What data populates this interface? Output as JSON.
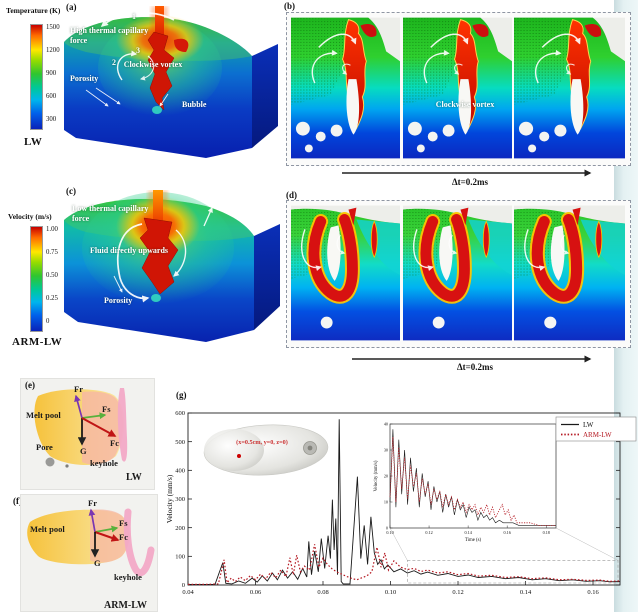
{
  "temperature_colorbar": {
    "title": "Temperature (K)",
    "ticks": [
      "1500",
      "1200",
      "900",
      "600",
      "300"
    ],
    "caption": "LW"
  },
  "velocity_colorbar": {
    "title": "Velocity (m/s)",
    "ticks": [
      "1.00",
      "0.75",
      "0.50",
      "0.25",
      "0"
    ],
    "caption": "ARM-LW"
  },
  "panel_a": {
    "tag": "(a)",
    "label_force": "High thermal capillary force",
    "n1": "1",
    "n2": "2",
    "n3": "3",
    "label_vortex": "Clockwise vortex",
    "label_porosity": "Porosity",
    "label_bubble": "Bubble"
  },
  "panel_b": {
    "tag": "(b)",
    "label_vortex": "Clockwise vortex",
    "delta": "Δt=0.2ms"
  },
  "panel_c": {
    "tag": "(c)",
    "label_force": "Low thermal capillary force",
    "label_fluid": "Fluid directly upwards",
    "label_porosity": "Porosity"
  },
  "panel_d": {
    "tag": "(d)",
    "delta": "Δt=0.2ms"
  },
  "panel_e": {
    "tag": "(e)",
    "melt_pool": "Melt pool",
    "fr": "Fr",
    "fs": "Fs",
    "g": "G",
    "fc": "Fc",
    "pore": "Pore",
    "keyhole": "keyhole",
    "caption": "LW"
  },
  "panel_f": {
    "tag": "(f)",
    "melt_pool": "Melt pool",
    "fr": "Fr",
    "fs": "Fs",
    "fc": "Fc",
    "g": "G",
    "keyhole": "keyhole",
    "caption": "ARM-LW"
  },
  "panel_g": {
    "tag": "(g)"
  },
  "chart_data": {
    "type": "line",
    "title": "",
    "xlabel": "",
    "ylabel": "Velocity (mm/s)",
    "xlim": [
      0.04,
      0.168
    ],
    "ylim": [
      0,
      600
    ],
    "xticks": [
      0.04,
      0.06,
      0.08,
      0.1,
      0.12,
      0.14,
      0.16
    ],
    "yticks": [
      0,
      100,
      200,
      300,
      400,
      500,
      600
    ],
    "annotation": "(x=0.5cm, y=0, z=0)",
    "legend": [
      {
        "name": "LW",
        "color": "#1a1a1a",
        "style": "solid"
      },
      {
        "name": "ARM-LW",
        "color": "#b51a23",
        "style": "dotted"
      }
    ],
    "series": [
      {
        "name": "LW",
        "points": [
          [
            0.04,
            2
          ],
          [
            0.044,
            2
          ],
          [
            0.048,
            2
          ],
          [
            0.0503,
            78
          ],
          [
            0.0512,
            6
          ],
          [
            0.053,
            4
          ],
          [
            0.055,
            14
          ],
          [
            0.057,
            6
          ],
          [
            0.059,
            24
          ],
          [
            0.0605,
            10
          ],
          [
            0.062,
            32
          ],
          [
            0.0635,
            14
          ],
          [
            0.065,
            42
          ],
          [
            0.0665,
            18
          ],
          [
            0.068,
            52
          ],
          [
            0.0695,
            24
          ],
          [
            0.071,
            46
          ],
          [
            0.0725,
            20
          ],
          [
            0.074,
            58
          ],
          [
            0.0752,
            28
          ],
          [
            0.0758,
            152
          ],
          [
            0.0766,
            36
          ],
          [
            0.0775,
            118
          ],
          [
            0.0786,
            46
          ],
          [
            0.0795,
            162
          ],
          [
            0.0805,
            58
          ],
          [
            0.0815,
            172
          ],
          [
            0.0822,
            92
          ],
          [
            0.0828,
            298
          ],
          [
            0.0833,
            122
          ],
          [
            0.0838,
            232
          ],
          [
            0.0843,
            36
          ],
          [
            0.0848,
            578
          ],
          [
            0.0854,
            12
          ],
          [
            0.086,
            4
          ],
          [
            0.088,
            4
          ],
          [
            0.0902,
            378
          ],
          [
            0.0912,
            92
          ],
          [
            0.0922,
            208
          ],
          [
            0.0932,
            72
          ],
          [
            0.0942,
            238
          ],
          [
            0.0952,
            112
          ],
          [
            0.0962,
            72
          ],
          [
            0.0972,
            88
          ],
          [
            0.0982,
            56
          ],
          [
            0.0992,
            70
          ],
          [
            0.101,
            46
          ],
          [
            0.103,
            56
          ],
          [
            0.105,
            42
          ],
          [
            0.107,
            50
          ],
          [
            0.109,
            38
          ],
          [
            0.111,
            45
          ],
          [
            0.114,
            34
          ],
          [
            0.117,
            40
          ],
          [
            0.12,
            30
          ],
          [
            0.123,
            35
          ],
          [
            0.126,
            26
          ],
          [
            0.13,
            30
          ],
          [
            0.134,
            22
          ],
          [
            0.138,
            26
          ],
          [
            0.142,
            18
          ],
          [
            0.146,
            22
          ],
          [
            0.15,
            15
          ],
          [
            0.154,
            18
          ],
          [
            0.158,
            13
          ],
          [
            0.162,
            15
          ],
          [
            0.165,
            11
          ],
          [
            0.168,
            12
          ]
        ]
      },
      {
        "name": "ARM-LW",
        "points": [
          [
            0.04,
            2
          ],
          [
            0.045,
            2
          ],
          [
            0.049,
            4
          ],
          [
            0.0507,
            88
          ],
          [
            0.0516,
            8
          ],
          [
            0.0528,
            24
          ],
          [
            0.054,
            12
          ],
          [
            0.0555,
            28
          ],
          [
            0.057,
            15
          ],
          [
            0.0585,
            33
          ],
          [
            0.06,
            18
          ],
          [
            0.0615,
            38
          ],
          [
            0.063,
            21
          ],
          [
            0.0645,
            44
          ],
          [
            0.066,
            25
          ],
          [
            0.0675,
            52
          ],
          [
            0.069,
            29
          ],
          [
            0.0702,
            95
          ],
          [
            0.0712,
            36
          ],
          [
            0.0722,
            104
          ],
          [
            0.0733,
            46
          ],
          [
            0.0745,
            66
          ],
          [
            0.076,
            52
          ],
          [
            0.0775,
            142
          ],
          [
            0.0788,
            62
          ],
          [
            0.08,
            94
          ],
          [
            0.0813,
            72
          ],
          [
            0.0827,
            56
          ],
          [
            0.084,
            46
          ],
          [
            0.0855,
            38
          ],
          [
            0.087,
            30
          ],
          [
            0.0885,
            23
          ],
          [
            0.09,
            18
          ],
          [
            0.0915,
            25
          ],
          [
            0.093,
            32
          ],
          [
            0.0945,
            46
          ],
          [
            0.096,
            132
          ],
          [
            0.0972,
            62
          ],
          [
            0.0983,
            112
          ],
          [
            0.0994,
            52
          ],
          [
            0.101,
            84
          ],
          [
            0.103,
            62
          ],
          [
            0.105,
            54
          ],
          [
            0.107,
            58
          ],
          [
            0.109,
            47
          ],
          [
            0.111,
            52
          ],
          [
            0.114,
            42
          ],
          [
            0.117,
            46
          ],
          [
            0.12,
            36
          ],
          [
            0.123,
            40
          ],
          [
            0.126,
            31
          ],
          [
            0.13,
            34
          ],
          [
            0.134,
            26
          ],
          [
            0.138,
            29
          ],
          [
            0.142,
            22
          ],
          [
            0.146,
            25
          ],
          [
            0.15,
            18
          ],
          [
            0.154,
            20
          ],
          [
            0.158,
            16
          ],
          [
            0.162,
            17
          ],
          [
            0.165,
            13
          ],
          [
            0.168,
            14
          ]
        ]
      }
    ],
    "inset": {
      "xlabel": "Time (s)",
      "ylabel": "Velocity (mm/s)",
      "xlim": [
        0.1,
        0.185
      ],
      "ylim": [
        0,
        40
      ],
      "xticks": [
        0.1,
        0.12,
        0.14,
        0.16,
        0.18
      ],
      "yticks": [
        0,
        10,
        20,
        30,
        40
      ],
      "series": [
        {
          "name": "LW",
          "points": [
            [
              0.1,
              10
            ],
            [
              0.1015,
              38
            ],
            [
              0.103,
              8
            ],
            [
              0.1045,
              34
            ],
            [
              0.106,
              13
            ],
            [
              0.1075,
              30
            ],
            [
              0.109,
              9
            ],
            [
              0.1105,
              27
            ],
            [
              0.112,
              14
            ],
            [
              0.1135,
              23
            ],
            [
              0.115,
              8
            ],
            [
              0.1165,
              21
            ],
            [
              0.118,
              12
            ],
            [
              0.1195,
              18
            ],
            [
              0.121,
              7
            ],
            [
              0.1225,
              16
            ],
            [
              0.124,
              10
            ],
            [
              0.1255,
              14
            ],
            [
              0.127,
              6
            ],
            [
              0.1285,
              13
            ],
            [
              0.13,
              8
            ],
            [
              0.1315,
              12
            ],
            [
              0.133,
              5
            ],
            [
              0.1345,
              11
            ],
            [
              0.136,
              7
            ],
            [
              0.1375,
              9
            ],
            [
              0.139,
              4
            ],
            [
              0.1405,
              8
            ],
            [
              0.142,
              6
            ],
            [
              0.1435,
              7
            ],
            [
              0.145,
              3
            ],
            [
              0.1465,
              6
            ],
            [
              0.148,
              4
            ],
            [
              0.1495,
              5
            ],
            [
              0.151,
              3
            ],
            [
              0.1525,
              4
            ],
            [
              0.154,
              2
            ],
            [
              0.156,
              3
            ],
            [
              0.158,
              2
            ],
            [
              0.16,
              2
            ],
            [
              0.163,
              2
            ],
            [
              0.166,
              1
            ],
            [
              0.17,
              1
            ],
            [
              0.175,
              1
            ],
            [
              0.18,
              1
            ],
            [
              0.185,
              1
            ]
          ]
        },
        {
          "name": "ARM-LW",
          "points": [
            [
              0.1,
              12
            ],
            [
              0.1015,
              35
            ],
            [
              0.103,
              10
            ],
            [
              0.1045,
              31
            ],
            [
              0.106,
              15
            ],
            [
              0.1075,
              27
            ],
            [
              0.109,
              11
            ],
            [
              0.1105,
              24
            ],
            [
              0.112,
              16
            ],
            [
              0.1135,
              21
            ],
            [
              0.115,
              10
            ],
            [
              0.1165,
              19
            ],
            [
              0.118,
              13
            ],
            [
              0.1195,
              17
            ],
            [
              0.121,
              9
            ],
            [
              0.1225,
              15
            ],
            [
              0.124,
              11
            ],
            [
              0.1255,
              14
            ],
            [
              0.127,
              8
            ],
            [
              0.1285,
              13
            ],
            [
              0.13,
              9
            ],
            [
              0.1315,
              12
            ],
            [
              0.133,
              7
            ],
            [
              0.1345,
              11
            ],
            [
              0.136,
              8
            ],
            [
              0.1375,
              10
            ],
            [
              0.139,
              6
            ],
            [
              0.1405,
              9
            ],
            [
              0.142,
              7
            ],
            [
              0.1435,
              9
            ],
            [
              0.145,
              5
            ],
            [
              0.1465,
              8
            ],
            [
              0.148,
              6
            ],
            [
              0.1495,
              9
            ],
            [
              0.151,
              5
            ],
            [
              0.1525,
              8
            ],
            [
              0.154,
              4
            ],
            [
              0.156,
              7
            ],
            [
              0.1575,
              9
            ],
            [
              0.159,
              5
            ],
            [
              0.1605,
              7
            ],
            [
              0.162,
              3
            ],
            [
              0.1635,
              5
            ],
            [
              0.165,
              2
            ],
            [
              0.168,
              2
            ],
            [
              0.172,
              2
            ],
            [
              0.176,
              1
            ],
            [
              0.18,
              1
            ],
            [
              0.185,
              1
            ]
          ]
        }
      ]
    }
  }
}
